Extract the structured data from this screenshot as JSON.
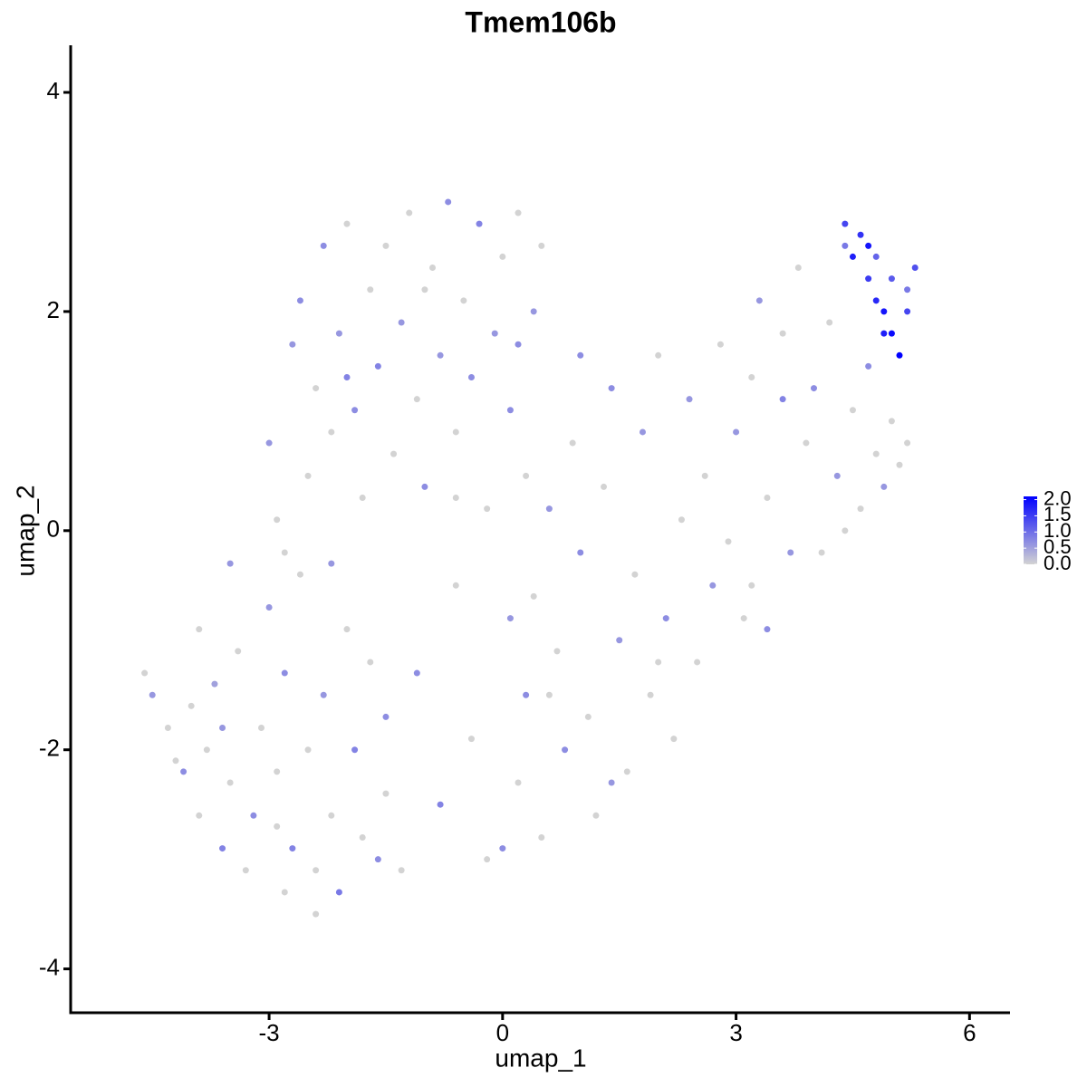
{
  "chart_data": {
    "type": "scatter",
    "title": "Tmem106b",
    "x_label": "umap_1",
    "y_label": "umap_2",
    "xlim": [
      -5.55,
      6.52
    ],
    "ylim": [
      -4.4,
      4.43
    ],
    "xticks": [
      -3,
      0,
      3,
      6
    ],
    "yticks": [
      -4,
      -2,
      0,
      2,
      4
    ],
    "grid": false,
    "low_color": "#d3d3d3",
    "high_color": "#0000ff",
    "color_lim": [
      0,
      2.1
    ],
    "colorbar_ticks": [
      {
        "value": 0,
        "label": "0.0"
      },
      {
        "value": 0.5,
        "label": "0.5"
      },
      {
        "value": 1,
        "label": "1.0"
      },
      {
        "value": 1.5,
        "label": "1.5"
      },
      {
        "value": 2,
        "label": "2.0"
      }
    ],
    "x": [
      -4.6,
      -4.5,
      -4.3,
      -4.1,
      -4.0,
      -3.9,
      -3.8,
      -3.7,
      -3.6,
      -3.5,
      -3.4,
      -3.3,
      -3.2,
      -3.1,
      -3.0,
      -2.9,
      -2.8,
      -2.8,
      -2.7,
      -2.6,
      -2.5,
      -2.4,
      -2.3,
      -2.2,
      -2.1,
      -2.0,
      -1.9,
      -1.8,
      -1.7,
      -1.6,
      -3.9,
      -3.5,
      -2.4,
      -2.9,
      -3.6,
      -4.2,
      -1.5,
      -1.3,
      -1.5,
      -2.2,
      -3.0,
      -2.9,
      -2.7,
      -2.6,
      -2.5,
      -2.4,
      -2.3,
      -2.2,
      -2.1,
      -2.0,
      -1.9,
      -1.8,
      -1.7,
      -1.6,
      -1.5,
      -1.4,
      -1.3,
      -1.2,
      -1.1,
      -1.0,
      -0.9,
      -0.8,
      -0.7,
      -0.6,
      -0.5,
      -0.4,
      -0.3,
      -0.2,
      -0.1,
      0.0,
      0.1,
      0.2,
      0.3,
      0.4,
      0.5,
      -2.8,
      -1.0,
      -2.0,
      -0.6,
      0.2,
      0.0,
      0.2,
      0.3,
      0.4,
      0.5,
      0.6,
      0.7,
      0.8,
      0.9,
      1.0,
      1.1,
      1.2,
      1.3,
      1.4,
      1.5,
      1.6,
      1.7,
      1.8,
      1.9,
      2.0,
      2.1,
      2.2,
      2.3,
      2.4,
      2.5,
      2.6,
      2.7,
      2.8,
      2.9,
      3.0,
      1.0,
      0.6,
      1.4,
      2.0,
      0.1,
      -0.4,
      -0.8,
      -0.6,
      -1.1,
      -0.2,
      3.1,
      3.2,
      3.3,
      3.4,
      3.4,
      3.6,
      3.7,
      3.8,
      3.9,
      4.0,
      4.1,
      4.2,
      4.3,
      4.4,
      4.5,
      4.6,
      4.7,
      4.8,
      4.9,
      5.0,
      5.1,
      3.6,
      3.2,
      4.4,
      5.2,
      4.4,
      4.5,
      4.6,
      4.7,
      4.8,
      4.9,
      5.0,
      5.1,
      5.0,
      5.2,
      5.3,
      4.7,
      4.9,
      5.2,
      4.8
    ],
    "y": [
      -1.3,
      -1.5,
      -1.8,
      -2.2,
      -1.6,
      -2.6,
      -2.0,
      -1.4,
      -2.9,
      -2.3,
      -1.1,
      -3.1,
      -2.6,
      -1.8,
      -0.7,
      -2.2,
      -3.3,
      -1.3,
      -2.9,
      -0.4,
      -2.0,
      -3.1,
      -1.5,
      -2.6,
      -3.3,
      -0.9,
      -2.0,
      -2.8,
      -1.2,
      -3.0,
      -0.9,
      -0.3,
      -3.5,
      -2.7,
      -1.8,
      -2.1,
      -2.4,
      -3.1,
      -1.7,
      -0.3,
      0.8,
      0.1,
      1.7,
      2.1,
      0.5,
      1.3,
      2.6,
      0.9,
      1.8,
      2.8,
      1.1,
      0.3,
      2.2,
      1.5,
      2.6,
      0.7,
      1.9,
      2.9,
      1.2,
      0.4,
      2.4,
      1.6,
      3.0,
      0.9,
      2.1,
      1.4,
      2.8,
      0.2,
      1.8,
      2.5,
      1.1,
      2.9,
      0.5,
      2.0,
      2.6,
      -0.2,
      2.2,
      1.4,
      0.3,
      1.7,
      -2.9,
      -2.3,
      -1.5,
      -0.6,
      -2.8,
      0.2,
      -1.1,
      -2.0,
      0.8,
      -0.2,
      -1.7,
      -2.6,
      0.4,
      1.3,
      -1.0,
      -2.2,
      -0.4,
      0.9,
      -1.5,
      1.6,
      -0.8,
      -1.9,
      0.1,
      1.2,
      -1.2,
      0.5,
      -0.5,
      1.7,
      -0.1,
      0.9,
      1.6,
      -1.5,
      -2.3,
      -1.2,
      -0.8,
      -1.9,
      -2.5,
      -0.5,
      -1.3,
      -3.0,
      -0.8,
      1.4,
      2.1,
      0.3,
      -0.9,
      1.8,
      -0.2,
      2.4,
      0.8,
      1.3,
      -0.2,
      1.9,
      0.5,
      2.6,
      1.1,
      0.2,
      1.5,
      0.7,
      0.4,
      1.0,
      0.6,
      1.2,
      -0.5,
      0.0,
      0.8,
      2.8,
      2.5,
      2.7,
      2.3,
      2.1,
      2.0,
      1.8,
      1.6,
      2.3,
      2.0,
      2.4,
      2.6,
      1.8,
      2.2,
      2.5
    ],
    "values": [
      0,
      0.6,
      0,
      0.7,
      0,
      0,
      0,
      0.5,
      0.8,
      0,
      0,
      0,
      0.7,
      0,
      0.6,
      0,
      0,
      0.7,
      0.8,
      0,
      0,
      0,
      0.6,
      0,
      0.9,
      0,
      0.8,
      0,
      0,
      0.7,
      0,
      0.6,
      0,
      0,
      0.6,
      0,
      0,
      0,
      0.7,
      0.6,
      0.6,
      0,
      0.6,
      0.7,
      0,
      0,
      0.7,
      0,
      0.6,
      0,
      0.7,
      0,
      0,
      0.8,
      0,
      0,
      0.6,
      0,
      0,
      0.7,
      0,
      0.6,
      0.7,
      0,
      0,
      0.7,
      0.8,
      0,
      0.6,
      0,
      0.7,
      0,
      0,
      0.6,
      0,
      0,
      0,
      0.8,
      0,
      0.7,
      0.7,
      0,
      0.7,
      0,
      0,
      0.6,
      0,
      0.7,
      0,
      0.7,
      0,
      0,
      0,
      0.7,
      0.6,
      0,
      0,
      0.6,
      0,
      0,
      0.7,
      0,
      0,
      0.6,
      0,
      0,
      0.6,
      0,
      0,
      0.6,
      0.7,
      0,
      0.6,
      0,
      0.6,
      0,
      0.8,
      0,
      0.7,
      0,
      0,
      0,
      0.6,
      0,
      0.7,
      0,
      0.6,
      0,
      0,
      0.7,
      0,
      0,
      0.6,
      0.9,
      0,
      0,
      0.7,
      0,
      0.6,
      0,
      0,
      0.8,
      0,
      0,
      0,
      1.4,
      1.8,
      1.6,
      1.5,
      1.7,
      1.9,
      2.0,
      2.1,
      1.2,
      1.4,
      1.3,
      1.9,
      1.8,
      0.9,
      1.1
    ]
  }
}
